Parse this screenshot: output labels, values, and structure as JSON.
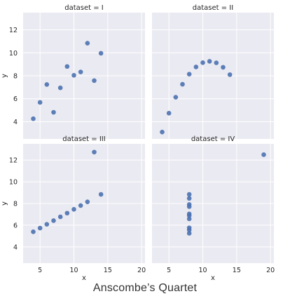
{
  "caption": "Anscombe’s Quartet",
  "colors": {
    "background": "#eaeaf2",
    "grid": "#ffffff",
    "point": "#4c72b0",
    "text": "#262626"
  },
  "chart_data": [
    {
      "type": "scatter",
      "title": "dataset = I",
      "xlabel": "",
      "ylabel": "y",
      "xlim": [
        2.5,
        20.5
      ],
      "ylim": [
        2.5,
        13.5
      ],
      "xticks": [],
      "yticks": [
        4,
        6,
        8,
        10,
        12
      ],
      "grid": true,
      "points": [
        {
          "x": 4,
          "y": 4.26
        },
        {
          "x": 5,
          "y": 5.68
        },
        {
          "x": 6,
          "y": 7.24
        },
        {
          "x": 7,
          "y": 4.82
        },
        {
          "x": 8,
          "y": 6.95
        },
        {
          "x": 9,
          "y": 8.81
        },
        {
          "x": 10,
          "y": 8.04
        },
        {
          "x": 11,
          "y": 8.33
        },
        {
          "x": 12,
          "y": 10.84
        },
        {
          "x": 13,
          "y": 7.58
        },
        {
          "x": 14,
          "y": 9.96
        }
      ]
    },
    {
      "type": "scatter",
      "title": "dataset = II",
      "xlabel": "",
      "ylabel": "",
      "xlim": [
        2.5,
        20.5
      ],
      "ylim": [
        2.5,
        13.5
      ],
      "xticks": [],
      "yticks": [],
      "grid": true,
      "points": [
        {
          "x": 4,
          "y": 3.1
        },
        {
          "x": 5,
          "y": 4.74
        },
        {
          "x": 6,
          "y": 6.13
        },
        {
          "x": 7,
          "y": 7.26
        },
        {
          "x": 8,
          "y": 8.14
        },
        {
          "x": 9,
          "y": 8.77
        },
        {
          "x": 10,
          "y": 9.14
        },
        {
          "x": 11,
          "y": 9.26
        },
        {
          "x": 12,
          "y": 9.13
        },
        {
          "x": 13,
          "y": 8.74
        },
        {
          "x": 14,
          "y": 8.1
        }
      ]
    },
    {
      "type": "scatter",
      "title": "dataset = III",
      "xlabel": "x",
      "ylabel": "y",
      "xlim": [
        2.5,
        20.5
      ],
      "ylim": [
        2.5,
        13.5
      ],
      "xticks": [
        5,
        10,
        15,
        20
      ],
      "yticks": [
        4,
        6,
        8,
        10,
        12
      ],
      "grid": true,
      "points": [
        {
          "x": 4,
          "y": 5.39
        },
        {
          "x": 5,
          "y": 5.73
        },
        {
          "x": 6,
          "y": 6.08
        },
        {
          "x": 7,
          "y": 6.42
        },
        {
          "x": 8,
          "y": 6.77
        },
        {
          "x": 9,
          "y": 7.11
        },
        {
          "x": 10,
          "y": 7.46
        },
        {
          "x": 11,
          "y": 7.81
        },
        {
          "x": 12,
          "y": 8.15
        },
        {
          "x": 13,
          "y": 12.74
        },
        {
          "x": 14,
          "y": 8.84
        }
      ]
    },
    {
      "type": "scatter",
      "title": "dataset = IV",
      "xlabel": "x",
      "ylabel": "",
      "xlim": [
        2.5,
        20.5
      ],
      "ylim": [
        2.5,
        13.5
      ],
      "xticks": [
        5,
        10,
        15,
        20
      ],
      "yticks": [],
      "grid": true,
      "points": [
        {
          "x": 8,
          "y": 5.25
        },
        {
          "x": 8,
          "y": 5.56
        },
        {
          "x": 8,
          "y": 5.76
        },
        {
          "x": 8,
          "y": 6.58
        },
        {
          "x": 8,
          "y": 6.89
        },
        {
          "x": 8,
          "y": 7.04
        },
        {
          "x": 8,
          "y": 7.71
        },
        {
          "x": 8,
          "y": 7.91
        },
        {
          "x": 8,
          "y": 8.47
        },
        {
          "x": 8,
          "y": 8.84
        },
        {
          "x": 19,
          "y": 12.5
        }
      ]
    }
  ]
}
